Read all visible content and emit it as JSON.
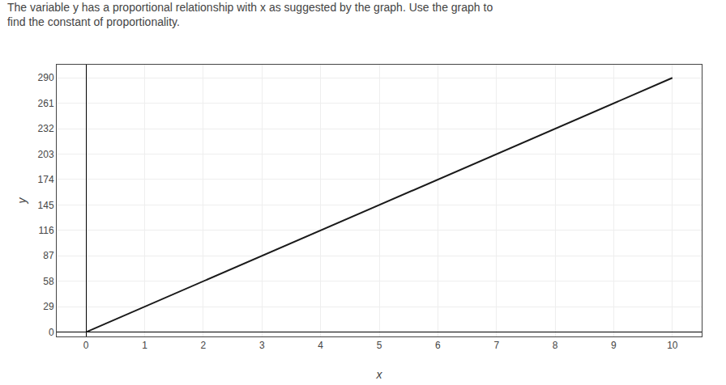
{
  "chart_data": {
    "type": "line",
    "title": "The variable y has a proportional relationship with x as suggested by the graph. Use the graph to",
    "subtitle": "find the constant of proportionality.",
    "xlabel": "x",
    "ylabel": "y",
    "x": [
      0,
      10
    ],
    "values": [
      0,
      290
    ],
    "color": "#1a1a1a",
    "xlim": [
      -0.5,
      10.5
    ],
    "xticks": [
      0,
      1,
      2,
      3,
      4,
      5,
      6,
      7,
      8,
      9,
      10
    ],
    "ylim": [
      -5,
      305
    ],
    "yticks": [
      0,
      29,
      58,
      87,
      116,
      145,
      174,
      203,
      232,
      261,
      290
    ],
    "grid": true
  }
}
